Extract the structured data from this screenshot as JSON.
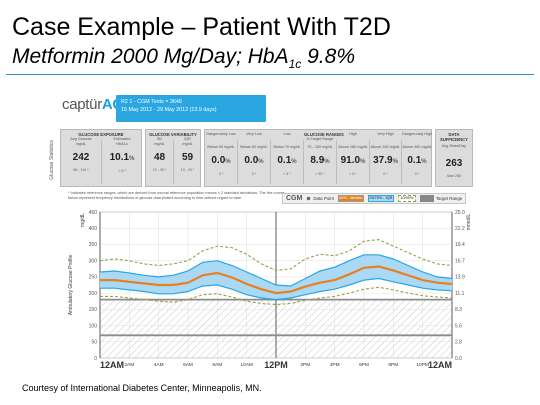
{
  "slide": {
    "title": "Case Example – Patient With T2D",
    "subtitle_main": "Metformin 2000 Mg/Day; HbA",
    "subtitle_sub": "1c",
    "subtitle_tail": " 9.8%",
    "footer": "Courtesy of International Diabetes Center, Minneapolis, MN."
  },
  "report": {
    "brand_prefix": "captür",
    "brand_suffix": "AGP",
    "brand_mark": "®",
    "info_line1": "R2 1 - CGM Tests = 3648",
    "info_line2": "15 May 2012 - 29 May 2012 (13.9 days)",
    "section_label": "Glucose Statistics",
    "chart_label": "Ambulatory Glucose Profile",
    "footnote": "* Indicates reference ranges, which are derived from normal reference population means ± 2 standard deviations. The five curves below represent frequency distributions of glucose data plotted according to time without regard to date."
  },
  "stats": {
    "glucose_exposure": {
      "header": "GLUCOSE EXPOSURE",
      "cols": [
        {
          "label": "Avg Glucose",
          "unit": "mg/dL",
          "value": "242",
          "range": "88 - 116 *"
        },
        {
          "label": "Estimated",
          "unit": "HbA1c",
          "value": "10.1",
          "value_unit": "%",
          "range": "< 6 *"
        }
      ]
    },
    "glucose_variability": {
      "header": "GLUCOSE VARIABILITY",
      "cols": [
        {
          "label": "SD",
          "unit": "mg/dL",
          "value": "48",
          "range": "10 - 26 *"
        },
        {
          "label": "IQR",
          "unit": "mg/dL",
          "value": "59",
          "range": "13 - 29 *"
        }
      ]
    },
    "glucose_ranges": {
      "header": "GLUCOSE RANGES",
      "header_sub": "In Target Range",
      "cols": [
        {
          "label": "Dangerously Low",
          "unit": "Below 50 mg/dL",
          "value": "0.0",
          "value_unit": "%",
          "range": "0 *"
        },
        {
          "label": "Very Low",
          "unit": "Below 60 mg/dL",
          "value": "0.0",
          "value_unit": "%",
          "range": "0 *"
        },
        {
          "label": "Low",
          "unit": "Below 70 mg/dL",
          "value": "0.1",
          "value_unit": "%",
          "range": "< 4 *"
        },
        {
          "label": "In Target Range",
          "unit": "70 - 180 mg/dL",
          "value": "8.9",
          "value_unit": "%",
          "range": "> 90 *"
        },
        {
          "label": "High",
          "unit": "Above 180 mg/dL",
          "value": "91.0",
          "value_unit": "%",
          "range": "< 6 *"
        },
        {
          "label": "Very High",
          "unit": "Above 250 mg/dL",
          "value": "37.9",
          "value_unit": "%",
          "range": "0 *"
        },
        {
          "label": "Dangerously High",
          "unit": "Above 400 mg/dL",
          "value": "0.1",
          "value_unit": "%",
          "range": "0 *"
        }
      ]
    },
    "data_sufficiency": {
      "header": "DATA SUFFICIENCY",
      "cols": [
        {
          "label": "Avg Tests/Day",
          "unit": "",
          "value": "263",
          "range": "Max 288"
        }
      ]
    }
  },
  "legend": {
    "cgm": "CGM",
    "data_point": "Data Point",
    "median": "50% - Median",
    "iqr": "25/75% - IQR",
    "p10_90": "10/90%",
    "target": "Target Range"
  },
  "colors": {
    "median": "#e8801f",
    "iqr_fill": "#a9d9f5",
    "iqr_line": "#2aa6e0",
    "p10_90": "#9aa04a",
    "target": "#8c8c8c",
    "brand": "#1aa0d8"
  },
  "chart_data": {
    "type": "line",
    "ylabel_left": "mg/dL",
    "ylabel_right": "mmol/L",
    "ylim": [
      0,
      450
    ],
    "yticks_left": [
      0,
      50,
      100,
      150,
      200,
      250,
      300,
      350,
      400,
      450
    ],
    "yticks_right": [
      "0.0",
      "2.8",
      "5.6",
      "8.3",
      "11.1",
      "13.9",
      "16.7",
      "19.4",
      "22.2",
      "25.0"
    ],
    "x_labels": [
      "12AM",
      "2AM",
      "4AM",
      "6AM",
      "8AM",
      "10AM",
      "12PM",
      "2PM",
      "4PM",
      "6PM",
      "8PM",
      "10PM",
      "12AM"
    ],
    "x_major": [
      0,
      6,
      12
    ],
    "target_range": [
      70,
      180
    ],
    "hatched_below": 180,
    "x_hours": [
      0,
      1,
      2,
      3,
      4,
      5,
      6,
      7,
      8,
      9,
      10,
      11,
      12,
      13,
      14,
      15,
      16,
      17,
      18,
      19,
      20,
      21,
      22,
      23,
      24
    ],
    "series": [
      {
        "name": "10/90%",
        "role": "p90",
        "values": [
          300,
          305,
          300,
          290,
          285,
          290,
          300,
          330,
          345,
          340,
          320,
          290,
          270,
          275,
          305,
          320,
          315,
          330,
          360,
          365,
          345,
          325,
          305,
          290,
          285
        ]
      },
      {
        "name": "25/75% - IQR",
        "role": "p75",
        "values": [
          265,
          268,
          262,
          255,
          250,
          255,
          268,
          295,
          300,
          285,
          265,
          245,
          225,
          222,
          245,
          268,
          280,
          300,
          318,
          318,
          305,
          285,
          265,
          250,
          245
        ]
      },
      {
        "name": "50% - Median",
        "role": "p50",
        "values": [
          240,
          240,
          235,
          230,
          225,
          225,
          232,
          255,
          262,
          248,
          228,
          212,
          200,
          205,
          220,
          232,
          240,
          258,
          278,
          282,
          270,
          255,
          240,
          232,
          228
        ]
      },
      {
        "name": "25/75% - IQR",
        "role": "p25",
        "values": [
          215,
          215,
          210,
          205,
          198,
          198,
          205,
          222,
          225,
          212,
          195,
          185,
          180,
          185,
          195,
          205,
          212,
          225,
          240,
          245,
          235,
          225,
          215,
          210,
          207
        ]
      },
      {
        "name": "10/90%",
        "role": "p10",
        "values": [
          190,
          190,
          185,
          180,
          175,
          172,
          180,
          195,
          198,
          188,
          175,
          168,
          165,
          168,
          178,
          185,
          190,
          200,
          212,
          218,
          210,
          200,
          192,
          188,
          185
        ]
      }
    ]
  }
}
